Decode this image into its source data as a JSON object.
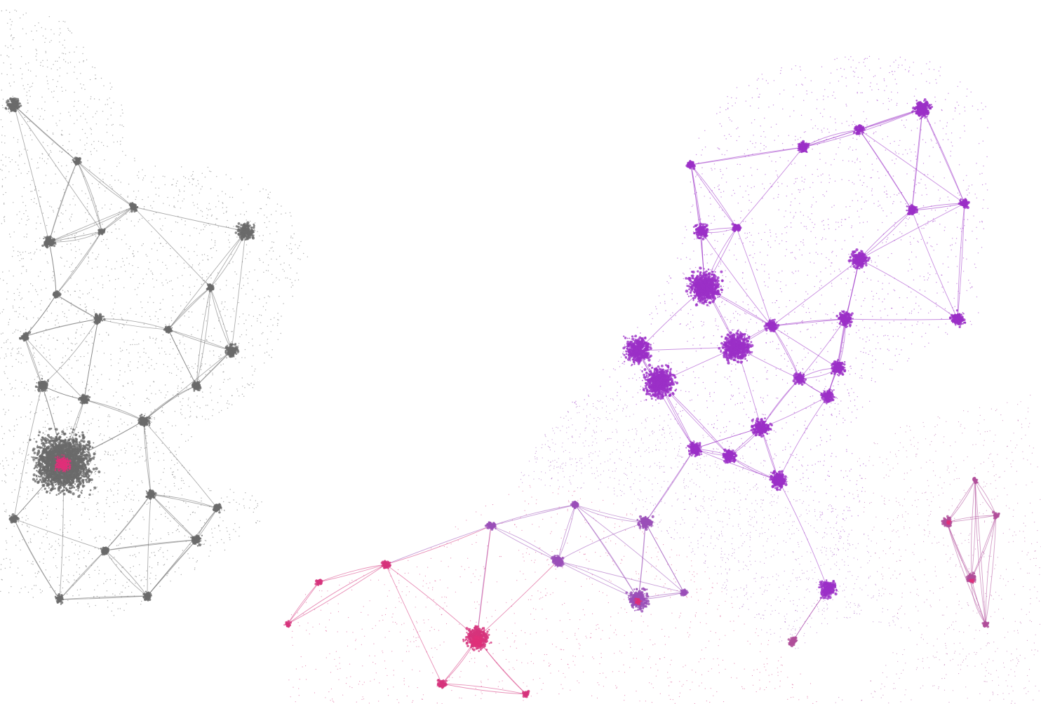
{
  "map": {
    "background_color": "#ffffff",
    "palette": {
      "great_britain": "#6a6a6a",
      "netherlands": "#9b2fc7",
      "belgium": "#9a4fb8",
      "france": "#d6337c",
      "germany": "#b04f9a",
      "city_core_highlight": "#e0307a"
    },
    "regions": [
      {
        "id": "great-britain",
        "color_key": "great_britain"
      },
      {
        "id": "netherlands",
        "color_key": "netherlands"
      },
      {
        "id": "belgium",
        "color_key": "belgium"
      },
      {
        "id": "france",
        "color_key": "france"
      },
      {
        "id": "germany",
        "color_key": "germany"
      }
    ]
  }
}
